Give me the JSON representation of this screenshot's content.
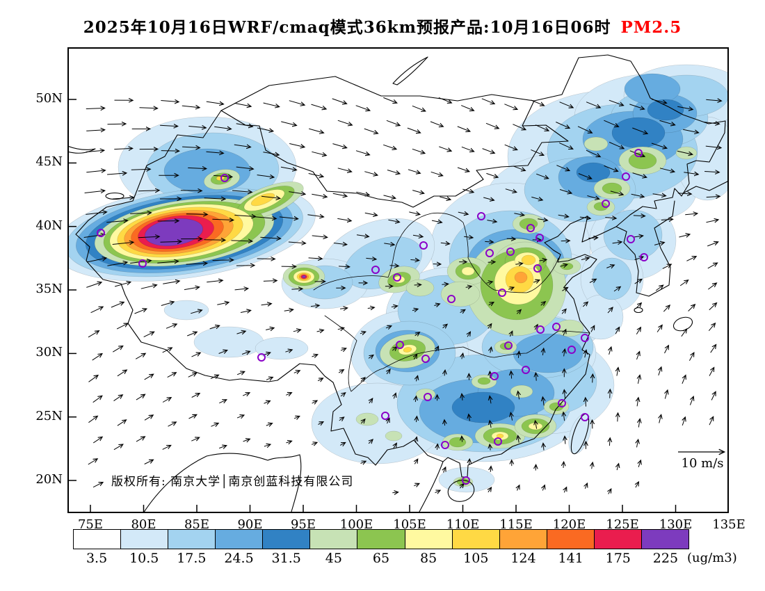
{
  "title": {
    "text": "2025年10月16日WRF/cmaq模式36km预报产品:10月16日06时",
    "species": "PM2.5"
  },
  "colors": {
    "species": "#FF0000",
    "city_marker": "#8A00C8",
    "coastline": "#000000"
  },
  "map": {
    "copyright": "版权所有: 南京大学│南京创蓝科技有限公司",
    "wind_ref": "10 m/s"
  },
  "axes": {
    "lat": [
      "50N",
      "45N",
      "40N",
      "35N",
      "30N",
      "25N",
      "20N"
    ],
    "lon": [
      "75E",
      "80E",
      "85E",
      "90E",
      "95E",
      "100E",
      "105E",
      "110E",
      "115E",
      "120E",
      "125E",
      "130E",
      "135E"
    ]
  },
  "colorbar": {
    "unit": "(ug/m3)",
    "labels": [
      "3.5",
      "10.5",
      "17.5",
      "24.5",
      "31.5",
      "45",
      "65",
      "85",
      "105",
      "124",
      "141",
      "175",
      "225"
    ],
    "colors": [
      "#FFFFFF",
      "#D3E9F8",
      "#A3D3F0",
      "#66ACE0",
      "#3182C4",
      "#C7E2B5",
      "#8CC550",
      "#FFF9A0",
      "#FFD944",
      "#FFA437",
      "#FA6A22",
      "#EA1D4E",
      "#7D3BBE"
    ]
  },
  "chart_data": {
    "type": "heatmap",
    "title": "2025年10月16日WRF/cmaq模式36km预报产品:10月16日06时 PM2.5",
    "variable": "PM2.5",
    "unit": "ug/m3",
    "lon_ticks": [
      "75E",
      "80E",
      "85E",
      "90E",
      "95E",
      "100E",
      "105E",
      "110E",
      "115E",
      "120E",
      "125E",
      "130E",
      "135E"
    ],
    "lat_ticks": [
      "50N",
      "45N",
      "40N",
      "35N",
      "30N",
      "25N",
      "20N"
    ],
    "levels": [
      3.5,
      10.5,
      17.5,
      24.5,
      31.5,
      45,
      65,
      85,
      105,
      124,
      141,
      175,
      225
    ],
    "palette": [
      "#FFFFFF",
      "#D3E9F8",
      "#A3D3F0",
      "#66ACE0",
      "#3182C4",
      "#C7E2B5",
      "#8CC550",
      "#FFF9A0",
      "#FFD944",
      "#FFA437",
      "#FA6A22",
      "#EA1D4E",
      "#7D3BBE"
    ],
    "legend_position": "bottom-colorbar",
    "grid": false,
    "wind_reference_ms": 10,
    "overlays": [
      "wind vector arrows",
      "purple circles marking major cities",
      "coastlines and national borders"
    ],
    "hotspots": [
      {
        "region": "Tarim Basin, southern Xinjiang (~77-90E, 37-42N)",
        "value": ">225"
      },
      {
        "region": "Qaidam Basin spot (~94-95E, 36N)",
        "value": "141-225"
      },
      {
        "region": "North China Plain, Henan/Shandong/Hebei (~112-118E, 33-38N)",
        "value": "65-124"
      },
      {
        "region": "Sichuan Basin (~104-107E, 29-31N)",
        "value": "45-85"
      },
      {
        "region": "Pearl River Delta and SE coast (~110-119E, 22-26N)",
        "value": "31.5-85"
      },
      {
        "region": "Northeast China (~120-132E, 40-50N)",
        "value": "10.5-45"
      },
      {
        "region": "Tibetan Plateau and western Inner Mongolia",
        "value": "<10.5"
      }
    ]
  }
}
